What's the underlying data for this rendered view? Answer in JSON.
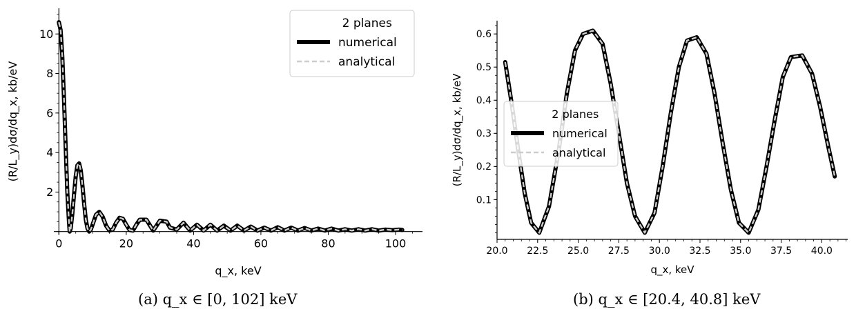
{
  "chart_data": [
    {
      "type": "line",
      "caption": "(a) q_x ∈ [0, 102] keV",
      "xlabel": "q_x, keV",
      "ylabel": "(R/L_y)dσ/dq_x, kb/eV",
      "xlim": [
        -1.5,
        108
      ],
      "ylim": [
        -0.15,
        11.3
      ],
      "xticks": [
        "0",
        "20",
        "40",
        "60",
        "80",
        "100"
      ],
      "xtick_values": [
        0,
        20,
        40,
        60,
        80,
        100
      ],
      "yticks": [
        "2",
        "4",
        "6",
        "8",
        "10"
      ],
      "ytick_values": [
        2,
        4,
        6,
        8,
        10
      ],
      "legend": {
        "title": "2 planes",
        "placement": "upper right"
      },
      "series": [
        {
          "name": "numerical",
          "style": "solid",
          "color": "#000000",
          "x": [
            0,
            0.5,
            1,
            1.5,
            2,
            2.5,
            3,
            3.2,
            3.5,
            4,
            4.5,
            5,
            5.5,
            6,
            6.5,
            7,
            7.5,
            8,
            8.5,
            9,
            9.5,
            10,
            11,
            12,
            13,
            14,
            15,
            16,
            17,
            18,
            19,
            20,
            21,
            22,
            23,
            24,
            26,
            28,
            30,
            32,
            33,
            35,
            37,
            39,
            41,
            43,
            45,
            47,
            49,
            51,
            53,
            55,
            57,
            59,
            61,
            63,
            65,
            67,
            69,
            71,
            73,
            75,
            77,
            79,
            81,
            83,
            85,
            87,
            89,
            91,
            93,
            95,
            97,
            99,
            101,
            102
          ],
          "y": [
            10.6,
            10.2,
            8.9,
            6.8,
            4.3,
            2.0,
            0.5,
            0.0,
            0.15,
            0.9,
            1.9,
            2.8,
            3.35,
            3.45,
            3.1,
            2.3,
            1.4,
            0.6,
            0.15,
            0.0,
            0.1,
            0.35,
            0.85,
            1.0,
            0.75,
            0.3,
            0.05,
            0.1,
            0.45,
            0.7,
            0.65,
            0.35,
            0.08,
            0.05,
            0.35,
            0.6,
            0.6,
            0.05,
            0.55,
            0.5,
            0.2,
            0.1,
            0.45,
            0.05,
            0.35,
            0.05,
            0.35,
            0.05,
            0.3,
            0.05,
            0.3,
            0.05,
            0.25,
            0.05,
            0.2,
            0.05,
            0.22,
            0.05,
            0.2,
            0.05,
            0.18,
            0.05,
            0.15,
            0.05,
            0.15,
            0.05,
            0.12,
            0.05,
            0.12,
            0.05,
            0.12,
            0.05,
            0.1,
            0.07,
            0.1,
            0.08
          ]
        },
        {
          "name": "analytical",
          "style": "dashed",
          "color": "#cccccc",
          "same_as": "numerical"
        }
      ]
    },
    {
      "type": "line",
      "caption": "(b) q_x ∈ [20.4, 40.8] keV",
      "xlabel": "q_x, keV",
      "ylabel": "(R/L_y)dσ/dq_x, kb/eV",
      "xlim": [
        20.0,
        41.6
      ],
      "ylim": [
        -0.02,
        0.64
      ],
      "xticks": [
        "20.0",
        "22.5",
        "25.0",
        "27.5",
        "30.0",
        "32.5",
        "35.0",
        "37.5",
        "40.0"
      ],
      "xtick_values": [
        20.0,
        22.5,
        25.0,
        27.5,
        30.0,
        32.5,
        35.0,
        37.5,
        40.0
      ],
      "yticks": [
        "0.1",
        "0.2",
        "0.3",
        "0.4",
        "0.5",
        "0.6"
      ],
      "ytick_values": [
        0.1,
        0.2,
        0.3,
        0.4,
        0.5,
        0.6
      ],
      "legend": {
        "title": "2 planes",
        "placement": "center left"
      },
      "series": [
        {
          "name": "numerical",
          "style": "solid",
          "color": "#000000",
          "x": [
            20.5,
            20.9,
            21.3,
            21.7,
            22.1,
            22.6,
            23.2,
            23.8,
            24.3,
            24.8,
            25.3,
            25.9,
            26.5,
            27.0,
            27.5,
            28.0,
            28.5,
            29.1,
            29.7,
            30.2,
            30.7,
            31.2,
            31.7,
            32.3,
            32.9,
            33.4,
            33.9,
            34.4,
            34.9,
            35.5,
            36.1,
            36.6,
            37.1,
            37.6,
            38.1,
            38.8,
            39.4,
            39.9,
            40.4,
            40.8
          ],
          "y": [
            0.515,
            0.39,
            0.25,
            0.12,
            0.03,
            0.0,
            0.08,
            0.25,
            0.42,
            0.55,
            0.6,
            0.61,
            0.57,
            0.45,
            0.3,
            0.15,
            0.05,
            0.0,
            0.06,
            0.2,
            0.36,
            0.5,
            0.58,
            0.59,
            0.54,
            0.42,
            0.27,
            0.13,
            0.03,
            0.0,
            0.07,
            0.2,
            0.34,
            0.47,
            0.53,
            0.535,
            0.48,
            0.38,
            0.26,
            0.17
          ]
        },
        {
          "name": "analytical",
          "style": "dashed",
          "color": "#cccccc",
          "same_as": "numerical"
        }
      ]
    }
  ],
  "captions": {
    "a": "(a) q_x ∈ [0, 102] keV",
    "b": "(b) q_x ∈ [20.4, 40.8] keV"
  }
}
